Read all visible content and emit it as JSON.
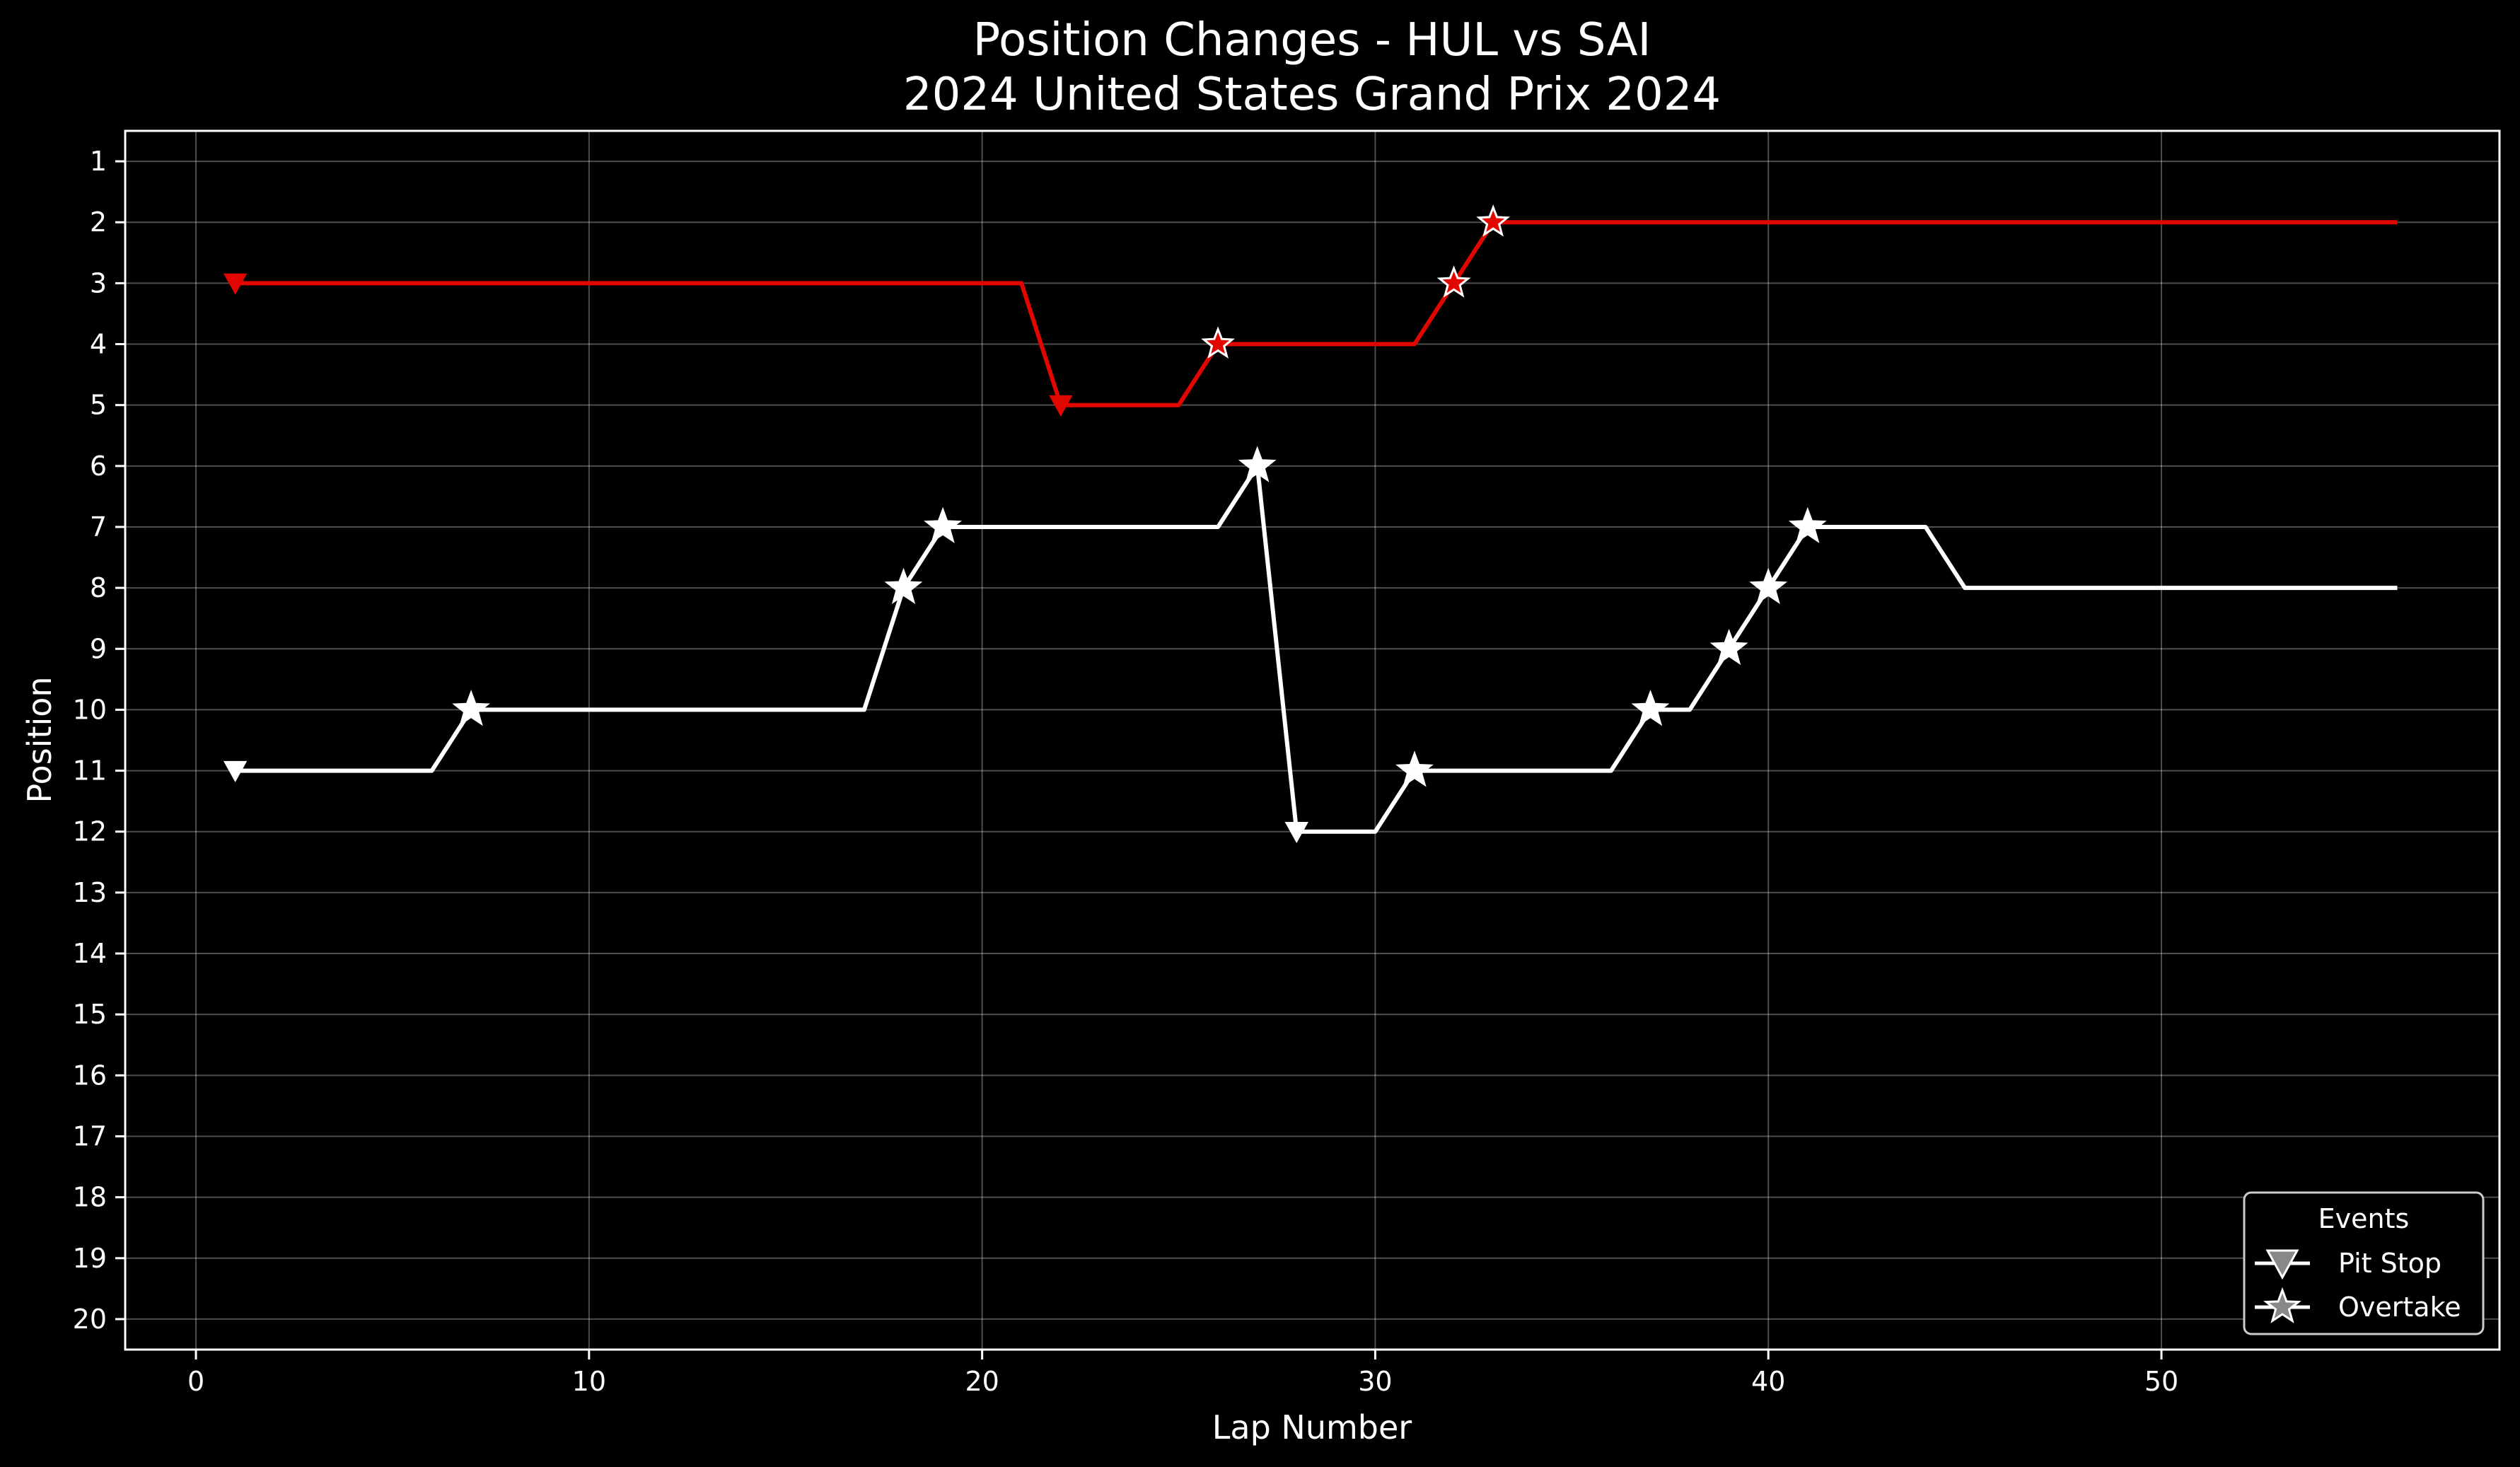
{
  "chart_data": {
    "type": "line",
    "title": "Position Changes - HUL vs SAI",
    "subtitle": "2024 United States Grand Prix 2024",
    "xlabel": "Lap Number",
    "ylabel": "Position",
    "xlim": [
      -1.8,
      58.6
    ],
    "ylim": [
      20.5,
      0.5
    ],
    "y_inverted": true,
    "xticks": [
      0,
      10,
      20,
      30,
      40,
      50
    ],
    "yticks": [
      1,
      2,
      3,
      4,
      5,
      6,
      7,
      8,
      9,
      10,
      11,
      12,
      13,
      14,
      15,
      16,
      17,
      18,
      19,
      20
    ],
    "grid": true,
    "background": "#000000",
    "series": [
      {
        "color": "#ffffff",
        "x": [
          1,
          2,
          3,
          4,
          5,
          6,
          7,
          8,
          9,
          10,
          11,
          12,
          13,
          14,
          15,
          16,
          17,
          18,
          19,
          20,
          21,
          22,
          23,
          24,
          25,
          26,
          27,
          28,
          29,
          30,
          31,
          32,
          33,
          34,
          35,
          36,
          37,
          38,
          39,
          40,
          41,
          42,
          43,
          44,
          45,
          46,
          47,
          48,
          49,
          50,
          51,
          52,
          53,
          54,
          55,
          56
        ],
        "values": [
          11,
          11,
          11,
          11,
          11,
          11,
          10,
          10,
          10,
          10,
          10,
          10,
          10,
          10,
          10,
          10,
          10,
          8,
          7,
          7,
          7,
          7,
          7,
          7,
          7,
          7,
          6,
          12,
          12,
          12,
          11,
          11,
          11,
          11,
          11,
          11,
          10,
          10,
          9,
          8,
          7,
          7,
          7,
          7,
          8,
          8,
          8,
          8,
          8,
          8,
          8,
          8,
          8,
          8,
          8,
          8
        ],
        "pit_stops": [
          [
            1,
            11
          ],
          [
            28,
            12
          ]
        ],
        "overtakes": [
          [
            7,
            10
          ],
          [
            18,
            8
          ],
          [
            19,
            7
          ],
          [
            27,
            6
          ],
          [
            31,
            11
          ],
          [
            37,
            10
          ],
          [
            39,
            9
          ],
          [
            40,
            8
          ],
          [
            41,
            7
          ]
        ]
      },
      {
        "color": "#e10600",
        "x": [
          1,
          2,
          3,
          4,
          5,
          6,
          7,
          8,
          9,
          10,
          11,
          12,
          13,
          14,
          15,
          16,
          17,
          18,
          19,
          20,
          21,
          22,
          23,
          24,
          25,
          26,
          27,
          28,
          29,
          30,
          31,
          32,
          33,
          34,
          35,
          36,
          37,
          38,
          39,
          40,
          41,
          42,
          43,
          44,
          45,
          46,
          47,
          48,
          49,
          50,
          51,
          52,
          53,
          54,
          55,
          56
        ],
        "values": [
          3,
          3,
          3,
          3,
          3,
          3,
          3,
          3,
          3,
          3,
          3,
          3,
          3,
          3,
          3,
          3,
          3,
          3,
          3,
          3,
          3,
          5,
          5,
          5,
          5,
          4,
          4,
          4,
          4,
          4,
          4,
          3,
          2,
          2,
          2,
          2,
          2,
          2,
          2,
          2,
          2,
          2,
          2,
          2,
          2,
          2,
          2,
          2,
          2,
          2,
          2,
          2,
          2,
          2,
          2,
          2
        ],
        "pit_stops": [
          [
            1,
            3
          ],
          [
            22,
            5
          ]
        ],
        "overtakes": [
          [
            26,
            4
          ],
          [
            32,
            3
          ],
          [
            33,
            2
          ]
        ]
      }
    ],
    "legend": {
      "title": "Events",
      "placement": "lower-right",
      "entries": [
        {
          "label": "Pit Stop",
          "marker": "triangle-down-icon"
        },
        {
          "label": "Overtake",
          "marker": "star-icon"
        }
      ]
    }
  }
}
